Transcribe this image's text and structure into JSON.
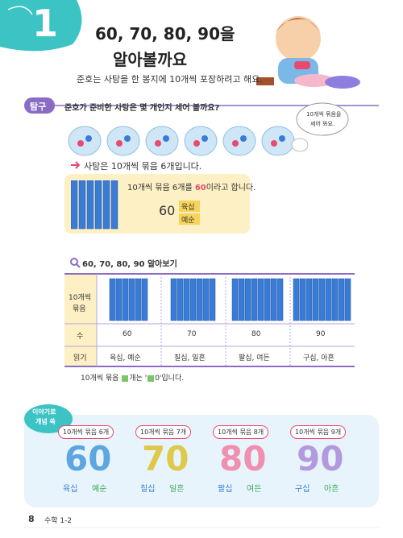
{
  "header": {
    "lesson": "1",
    "title_lines": [
      "60, 70, 80, 90을",
      "알아볼까요"
    ],
    "intro": "준호는 사탕을 한 봉지에 10개씩 포장하려고 해요."
  },
  "explore": {
    "tag": "탐구",
    "question": "준호가 준비한 사탕은 몇 개인지 세어 볼까요?",
    "bubble": [
      "10개씩 묶음을",
      "세어 봐요."
    ],
    "statement": "사탕은 10개씩 묶음 6개입니다.",
    "box": {
      "sentence": [
        "10개씩 묶음 6개를 ",
        "60",
        "이라고 합니다."
      ],
      "number": "60",
      "readings": [
        "육십",
        "예순"
      ]
    }
  },
  "section": {
    "title": "60, 70, 80, 90 알아보기",
    "table": {
      "bundle_header": [
        "10개씩",
        "묶음"
      ],
      "number_header": "수",
      "reading_header": "읽기",
      "numbers": [
        "60",
        "70",
        "80",
        "90"
      ],
      "readings": [
        "육십, 예순",
        "칠십, 일흔",
        "팔십, 여든",
        "구십, 아흔"
      ]
    },
    "note": [
      "10개씩 묶음 ",
      "개는 '",
      "0'입니다."
    ]
  },
  "concept": {
    "badge": [
      "이야기로",
      "개념 쏙"
    ],
    "cards": [
      {
        "label": "10개씩 묶음 6개",
        "number": "60",
        "readings": [
          "육십",
          "예순"
        ]
      },
      {
        "label": "10개씩 묶음 7개",
        "number": "70",
        "readings": [
          "칠십",
          "일흔"
        ]
      },
      {
        "label": "10개씩 묶음 8개",
        "number": "80",
        "readings": [
          "팔십",
          "여든"
        ]
      },
      {
        "label": "10개씩 묶음 9개",
        "number": "90",
        "readings": [
          "구십",
          "아흔"
        ]
      }
    ]
  },
  "footer": {
    "page": "8",
    "book": "수학 1-2"
  }
}
